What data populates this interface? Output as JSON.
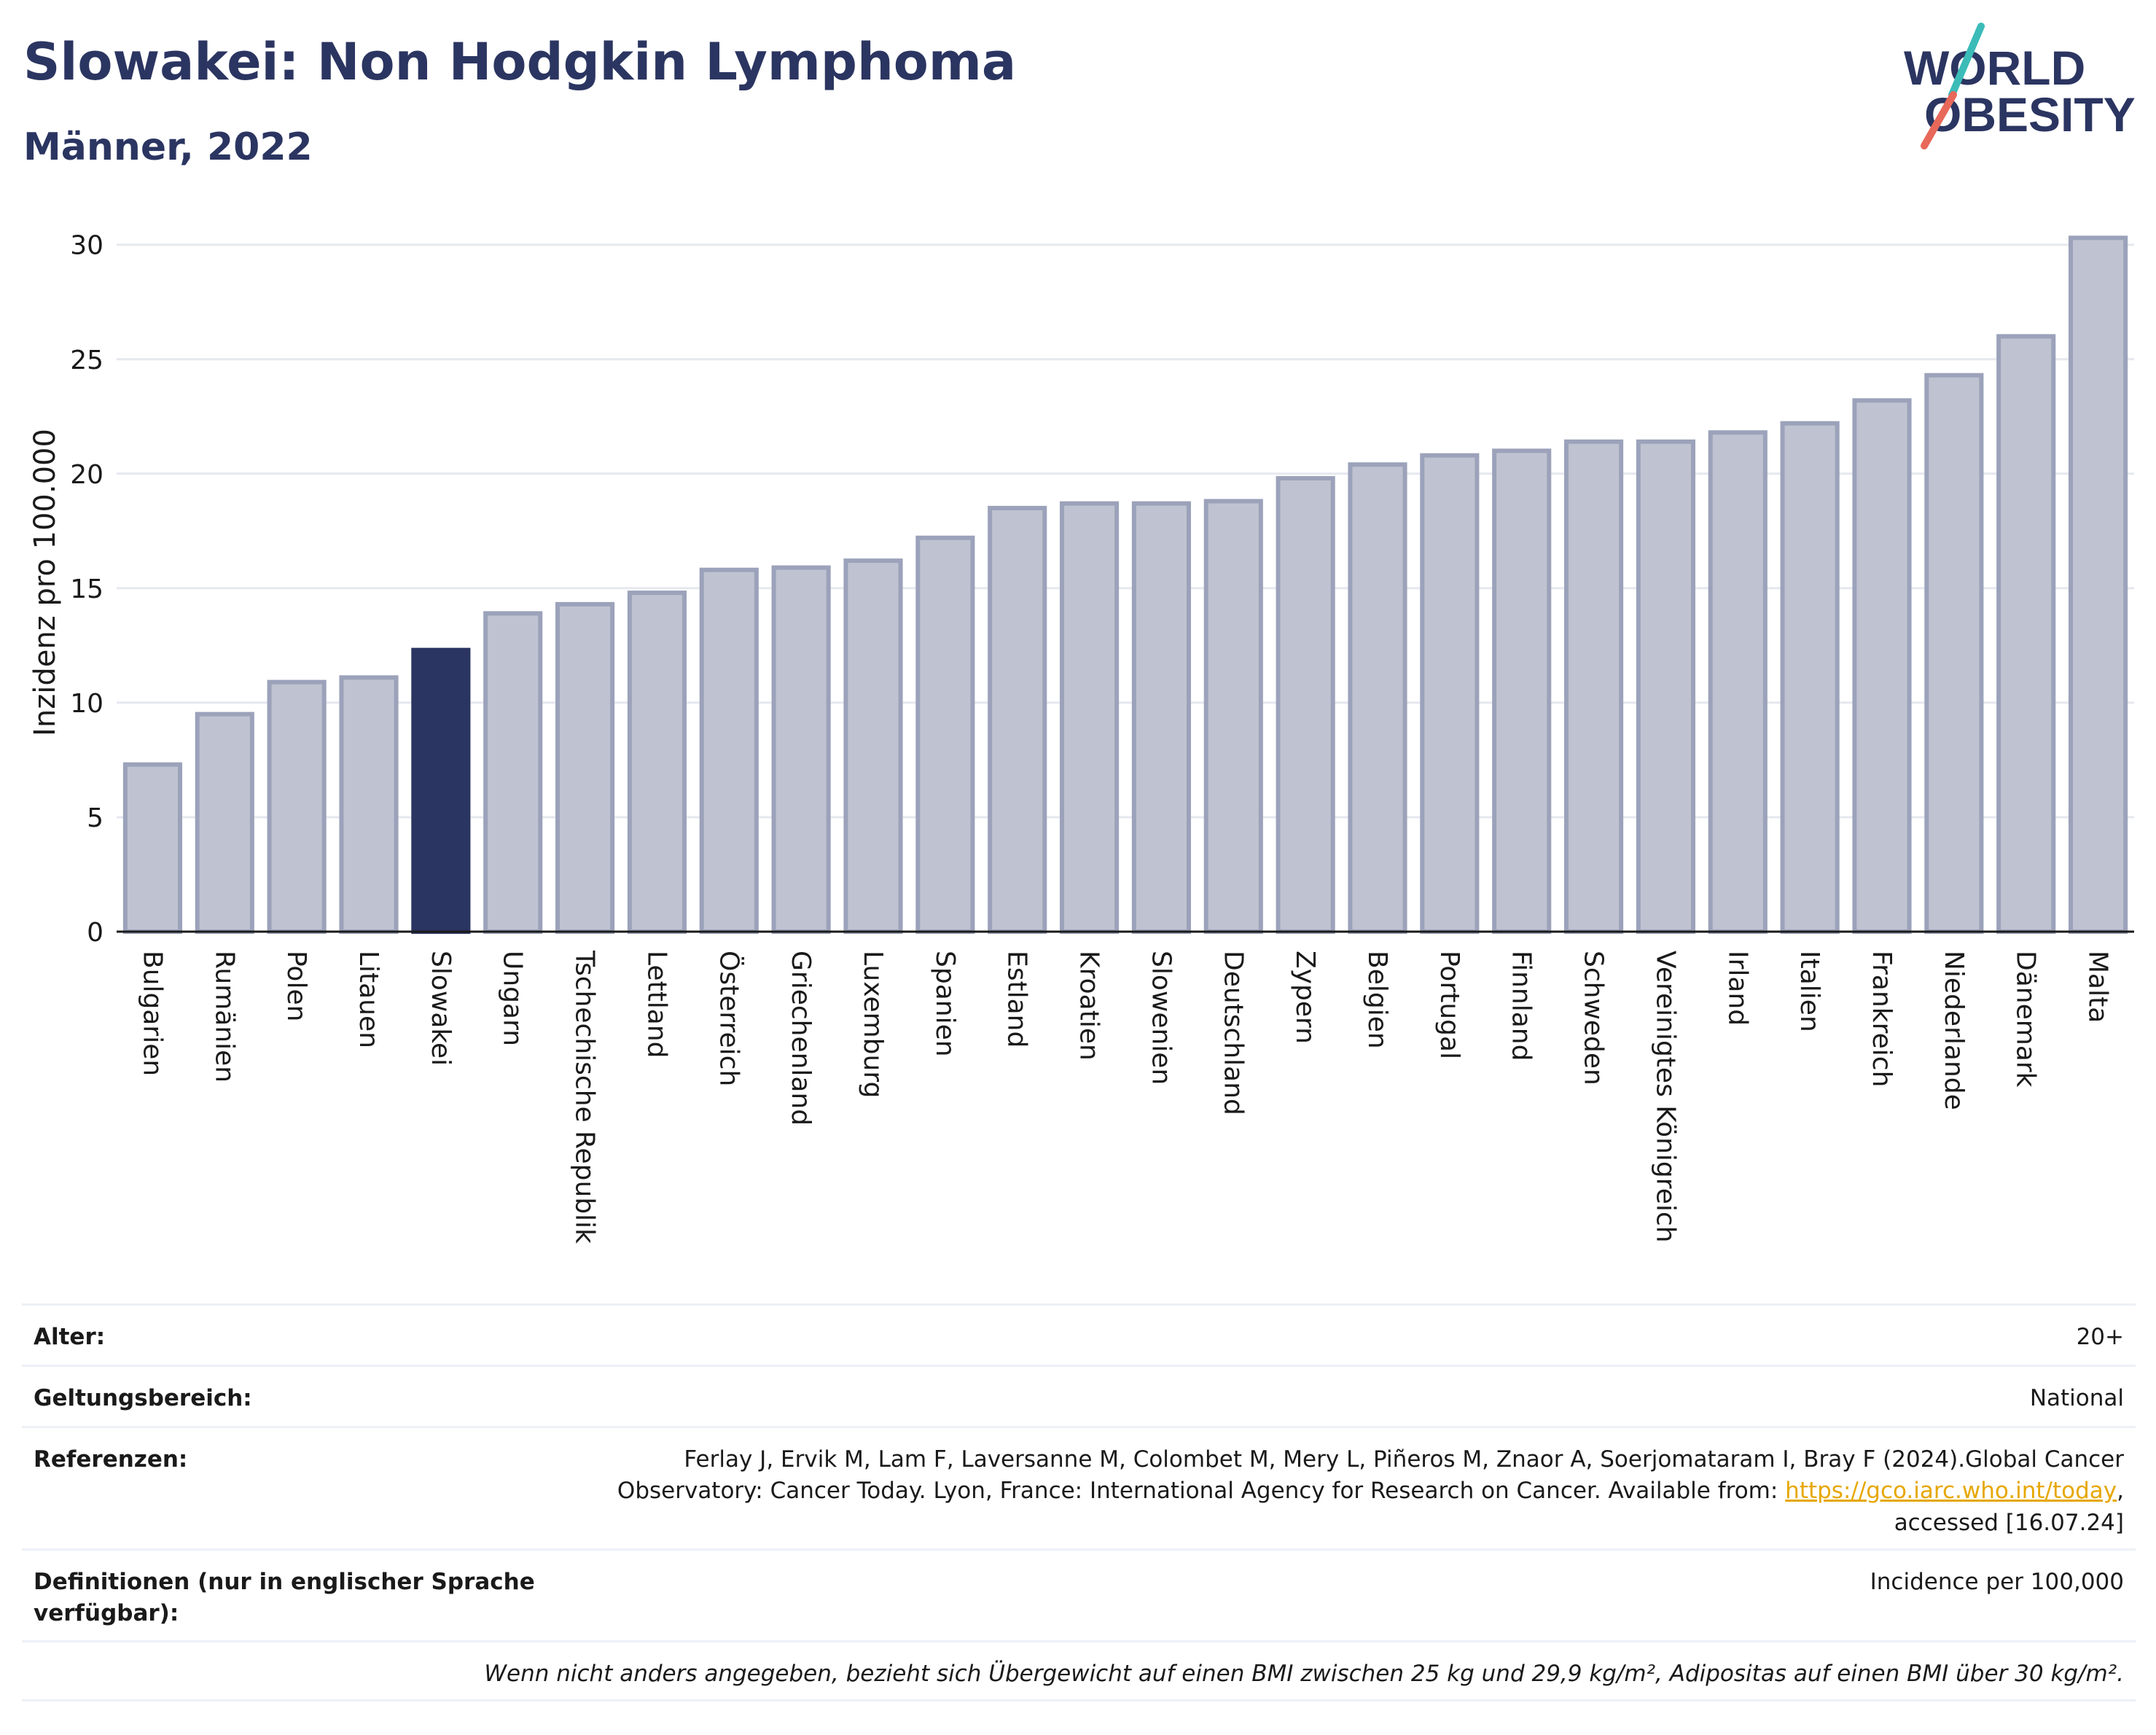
{
  "header": {
    "title": "Slowakei: Non Hodgkin Lymphoma",
    "subtitle": "Männer, 2022"
  },
  "logo": {
    "line1": "WORLD",
    "line2": "OBESITY",
    "colors": {
      "text": "#2b3561",
      "slash_teal": "#3bbcb8",
      "slash_red": "#e8685a"
    }
  },
  "colors": {
    "highlight_bar": "#2b3561",
    "bar_fill": "#bfc3d1",
    "bar_stroke": "#9ba2ba",
    "grid": "#e6e8ef",
    "axis": "#1a1a1a"
  },
  "chart_data": {
    "type": "bar",
    "title": "",
    "xlabel": "",
    "ylabel": "Inzidenz pro 100.000",
    "ylim": [
      0,
      30.5
    ],
    "yticks": [
      0,
      5,
      10,
      15,
      20,
      25,
      30
    ],
    "grid": true,
    "highlight": "Slowakei",
    "categories": [
      "Bulgarien",
      "Rumänien",
      "Polen",
      "Litauen",
      "Slowakei",
      "Ungarn",
      "Tschechische Republik",
      "Lettland",
      "Österreich",
      "Griechenland",
      "Luxemburg",
      "Spanien",
      "Estland",
      "Kroatien",
      "Slowenien",
      "Deutschland",
      "Zypern",
      "Belgien",
      "Portugal",
      "Finnland",
      "Schweden",
      "Vereinigtes Königreich",
      "Irland",
      "Italien",
      "Frankreich",
      "Niederlande",
      "Dänemark",
      "Malta"
    ],
    "values": [
      7.3,
      9.5,
      10.9,
      11.1,
      12.3,
      13.9,
      14.3,
      14.8,
      15.8,
      15.9,
      16.2,
      17.2,
      18.5,
      18.7,
      18.7,
      18.8,
      19.8,
      20.4,
      20.8,
      21.0,
      21.4,
      21.4,
      21.8,
      22.2,
      23.2,
      24.3,
      26.0,
      30.3
    ]
  },
  "info": {
    "age": {
      "label": "Alter:",
      "value": "20+"
    },
    "scope": {
      "label": "Geltungsbereich:",
      "value": "National"
    },
    "references": {
      "label": "Referenzen:",
      "text_line1": "Ferlay J, Ervik M, Lam F, Laversanne M, Colombet M, Mery L, Piñeros M, Znaor A, Soerjomataram I, Bray F (2024).Global Cancer",
      "text_line2": "Observatory: Cancer Today. Lyon, France: International Agency for Research on Cancer. Available from:",
      "link": "https://gco.iarc.who.int/today",
      "text_after_link": ",",
      "text_line3": "accessed [16.07.24]"
    },
    "definitions": {
      "label": "Definitionen (nur in englischer Sprache verfügbar):",
      "value": "Incidence per 100,000"
    },
    "footnote": "Wenn nicht anders angegeben, bezieht sich Übergewicht auf einen BMI zwischen 25 kg und 29,9 kg/m², Adipositas auf einen BMI über 30 kg/m²."
  }
}
